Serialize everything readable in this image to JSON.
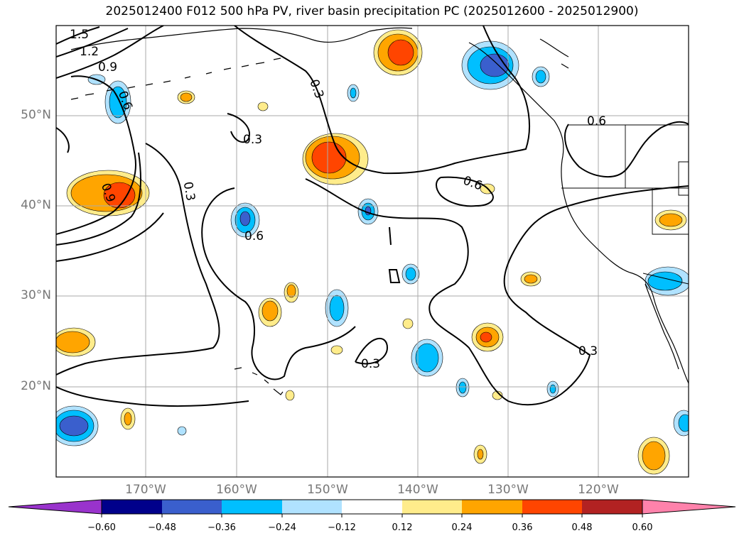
{
  "title": "2025012400 F012 500 hPa PV, river basin precipitation PC (2025012600 - 2025012900)",
  "map": {
    "lat_labels": [
      "50°N",
      "40°N",
      "30°N",
      "20°N"
    ],
    "lat_values": [
      50,
      40,
      30,
      20
    ],
    "lon_labels": [
      "170°W",
      "160°W",
      "150°W",
      "140°W",
      "130°W",
      "120°W"
    ],
    "lon_values": [
      -170,
      -160,
      -150,
      -140,
      -130,
      -120
    ],
    "extent": {
      "lon_min": -180,
      "lon_max": -110,
      "lat_min": 10,
      "lat_max": 60
    },
    "contour_labels": [
      "1.5",
      "1.2",
      "0.9",
      "0.6",
      "0.9",
      "0.3",
      "0.3",
      "0.3",
      "0.6",
      "0.6",
      "0.3",
      "0.3"
    ],
    "coastline_color": "#000000",
    "grid": true
  },
  "colorbar": {
    "ticks": [
      "−0.60",
      "−0.48",
      "−0.36",
      "−0.24",
      "−0.12",
      "0.12",
      "0.24",
      "0.36",
      "0.48",
      "0.60"
    ],
    "colors": [
      "#9933cc",
      "#00008b",
      "#3a5fcd",
      "#00bfff",
      "#b0e2ff",
      "#ffffff",
      "#ffec8b",
      "#ffa500",
      "#ff4500",
      "#b22222",
      "#ff82ab"
    ],
    "extend": "both"
  }
}
